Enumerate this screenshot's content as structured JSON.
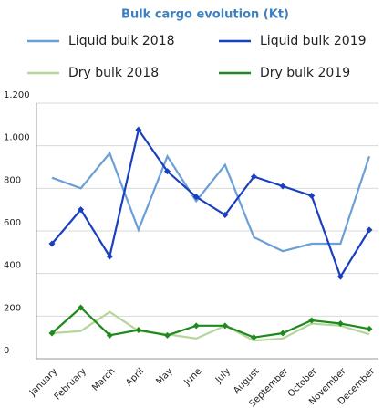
{
  "chart_data": {
    "type": "line",
    "title": "Bulk cargo evolution (Kt)",
    "categories": [
      "January",
      "February",
      "March",
      "April",
      "May",
      "June",
      "July",
      "August",
      "September",
      "October",
      "November",
      "December"
    ],
    "series": [
      {
        "name": "Liquid bulk 2018",
        "color": "#6a9fd8",
        "marker": false,
        "values": [
          850,
          800,
          965,
          605,
          950,
          740,
          910,
          570,
          505,
          540,
          540,
          950
        ]
      },
      {
        "name": "Liquid bulk 2019",
        "color": "#1a3fbf",
        "marker": true,
        "values": [
          540,
          700,
          480,
          1075,
          880,
          760,
          675,
          855,
          810,
          765,
          385,
          605
        ]
      },
      {
        "name": "Dry bulk 2018",
        "color": "#b5d69a",
        "marker": false,
        "values": [
          120,
          130,
          220,
          130,
          115,
          95,
          155,
          85,
          95,
          165,
          155,
          115
        ]
      },
      {
        "name": "Dry bulk 2019",
        "color": "#1e8a1e",
        "marker": true,
        "values": [
          120,
          240,
          110,
          135,
          110,
          155,
          155,
          100,
          120,
          180,
          165,
          140
        ]
      }
    ],
    "ylim": [
      0,
      1200
    ],
    "yticks": [
      0,
      200,
      400,
      600,
      800,
      {
        "value": 1000,
        "label": "1.000"
      },
      {
        "value": 1200,
        "label": "1.200"
      }
    ],
    "grid": true,
    "legend": "top"
  }
}
